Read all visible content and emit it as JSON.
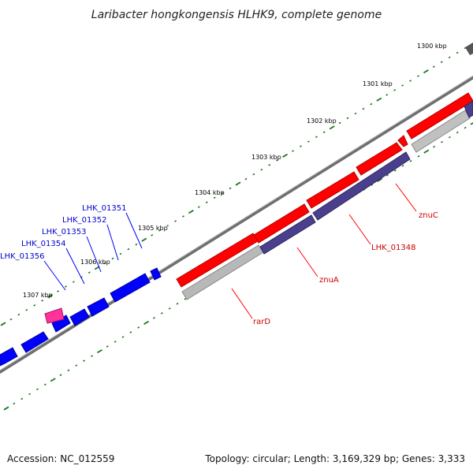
{
  "title": "Laribacter hongkongensis HLHK9, complete genome",
  "footer": {
    "accession": "Accession: NC_012559",
    "summary": "Topology: circular; Length: 3,169,329 bp; Genes: 3,333"
  },
  "colors": {
    "forward_gene": "#ff0000",
    "reverse_gene": "#0000ff",
    "highlight_gene": "#ff3399",
    "match_purple": "#4a3f8c",
    "match_grey": "#b8b8b8",
    "backbone": "#808080",
    "tick_green": "#1a7a1a"
  },
  "scale_labels": [
    "1300 kbp",
    "1301 kbp",
    "1302 kbp",
    "1303 kbp",
    "1304 kbp",
    "1305 kbp",
    "1306 kbp",
    "1307 kbp"
  ],
  "gene_labels_left": [
    "LHK_01351",
    "LHK_01352",
    "LHK_01353",
    "LHK_01354",
    "LHK_01356"
  ],
  "gene_labels_right": [
    "znuC",
    "LHK_01348",
    "znuA",
    "rarD"
  ]
}
